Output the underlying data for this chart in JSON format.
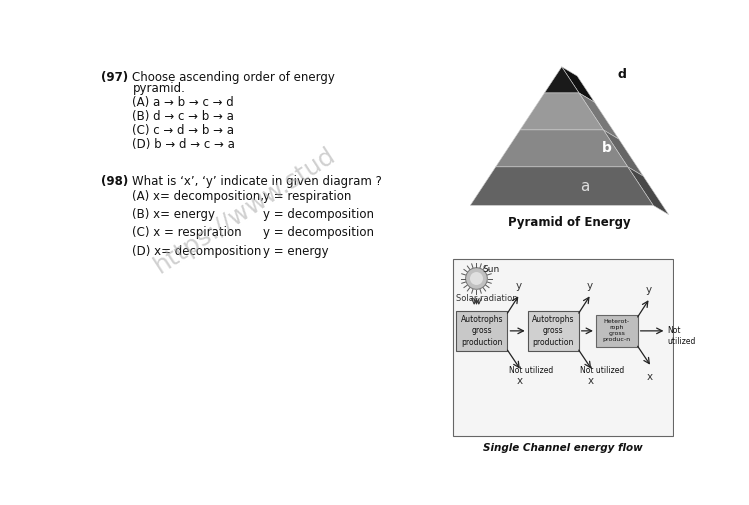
{
  "bg_color": "#ffffff",
  "q97_number": "(97)",
  "q97_text_line1": "Choose ascending order of energy",
  "q97_text_line2": "pyramid.",
  "q97_options": [
    "(A) a → b → c → d",
    "(B) d → c → b → a",
    "(C) c → d → b → a",
    "(D) b → d → c → a"
  ],
  "q98_number": "(98)",
  "q98_text": "What is ‘x’, ‘y’ indicate in given diagram ?",
  "q98_options": [
    [
      "(A) x= decomposition,",
      "y = respiration"
    ],
    [
      "(B) x= energy",
      "y = decomposition"
    ],
    [
      "(C) x = respiration",
      "y = decomposition"
    ],
    [
      "(D) x= decomposition",
      "y = energy"
    ]
  ],
  "pyramid_caption": "Pyramid of Energy",
  "flow_caption": "Single Channel energy flow",
  "watermark": "https://www.stud"
}
